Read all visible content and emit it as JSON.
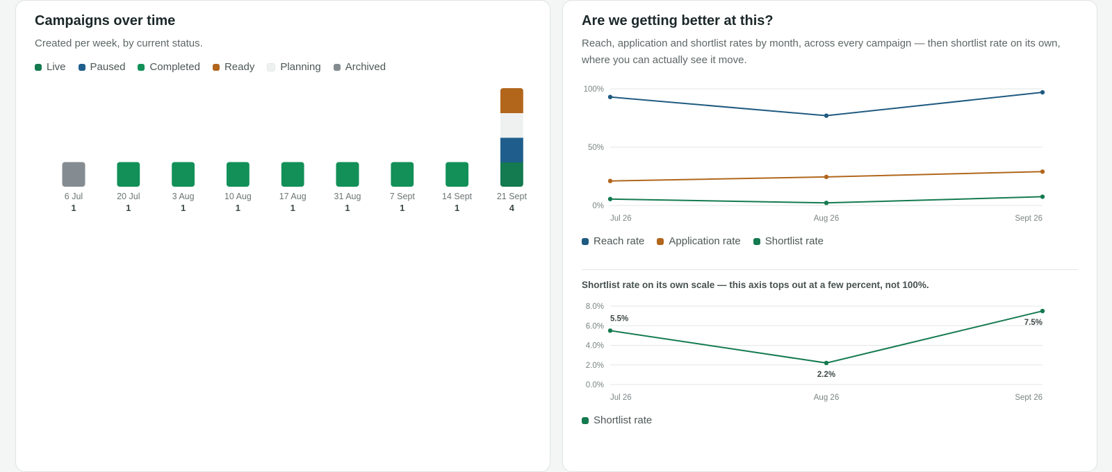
{
  "left_card": {
    "title": "Campaigns over time",
    "subtitle": "Created per week, by current status."
  },
  "right_card": {
    "title": "Are we getting better at this?",
    "subtitle": "Reach, application and shortlist rates by month, across every campaign — then shortlist rate on its own, where you can actually see it move.",
    "note": "Shortlist rate on its own scale — this axis tops out at a few percent, not 100%."
  },
  "colors": {
    "live": "#147a4f",
    "paused": "#1f5e8c",
    "completed": "#129058",
    "ready": "#b1661c",
    "planning": "#eef1f0",
    "archived": "#848c91",
    "reach": "#1f5a80",
    "application": "#b1661c",
    "shortlist": "#147a4f"
  },
  "chart_data": [
    {
      "type": "bar",
      "stacked": true,
      "categories": [
        "6 Jul",
        "20 Jul",
        "3 Aug",
        "10 Aug",
        "17 Aug",
        "31 Aug",
        "7 Sept",
        "14 Sept",
        "21 Sept"
      ],
      "totals": [
        "1",
        "1",
        "1",
        "1",
        "1",
        "1",
        "1",
        "1",
        "4"
      ],
      "series": [
        {
          "name": "Live",
          "color": "#147a4f",
          "values": [
            0,
            0,
            0,
            0,
            0,
            0,
            0,
            0,
            1
          ]
        },
        {
          "name": "Paused",
          "color": "#1f5e8c",
          "values": [
            0,
            0,
            0,
            0,
            0,
            0,
            0,
            0,
            1
          ]
        },
        {
          "name": "Completed",
          "color": "#129058",
          "values": [
            0,
            1,
            1,
            1,
            1,
            1,
            1,
            1,
            0
          ]
        },
        {
          "name": "Ready",
          "color": "#b1661c",
          "values": [
            0,
            0,
            0,
            0,
            0,
            0,
            0,
            0,
            1
          ]
        },
        {
          "name": "Planning",
          "color": "#eef1f0",
          "values": [
            0,
            0,
            0,
            0,
            0,
            0,
            0,
            0,
            1
          ]
        },
        {
          "name": "Archived",
          "color": "#848c91",
          "values": [
            1,
            0,
            0,
            0,
            0,
            0,
            0,
            0,
            0
          ]
        }
      ],
      "legend_position": "top-left"
    },
    {
      "type": "line",
      "x": [
        "Jul 26",
        "Aug 26",
        "Sept 26"
      ],
      "y_ticks": [
        "100%",
        "50%",
        "0%"
      ],
      "ylim": [
        0,
        100
      ],
      "grid": true,
      "series": [
        {
          "name": "Reach rate",
          "color": "#1f5a80",
          "values": [
            93,
            77,
            97
          ]
        },
        {
          "name": "Application rate",
          "color": "#b1661c",
          "values": [
            21,
            24.5,
            29
          ]
        },
        {
          "name": "Shortlist rate",
          "color": "#147a4f",
          "values": [
            5.5,
            2.2,
            7.5
          ]
        }
      ],
      "legend_position": "bottom-left"
    },
    {
      "type": "line",
      "x": [
        "Jul 26",
        "Aug 26",
        "Sept 26"
      ],
      "y_ticks": [
        "8.0%",
        "6.0%",
        "4.0%",
        "2.0%",
        "0.0%"
      ],
      "ylim": [
        0,
        8
      ],
      "grid": true,
      "series": [
        {
          "name": "Shortlist rate",
          "color": "#147a4f",
          "values": [
            5.5,
            2.2,
            7.5
          ],
          "labels": [
            "5.5%",
            "2.2%",
            "7.5%"
          ]
        }
      ],
      "legend_position": "bottom-left"
    }
  ]
}
